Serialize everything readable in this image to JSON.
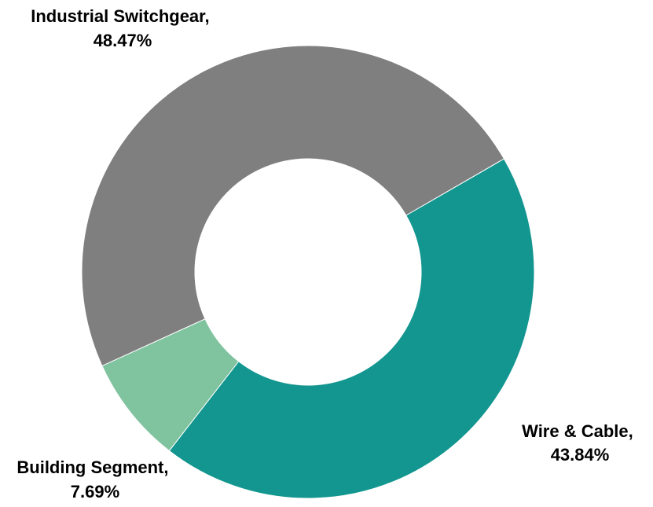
{
  "chart_data": {
    "type": "pie",
    "variant": "donut",
    "legend": "none",
    "slices": [
      {
        "label": "Wire & Cable,",
        "value": 43.84,
        "value_label": "43.84%",
        "color": "#12968f"
      },
      {
        "label": "Building Segment,",
        "value": 7.69,
        "value_label": "7.69%",
        "color": "#80c39f"
      },
      {
        "label": "Industrial Switchgear,",
        "value": 48.47,
        "value_label": "48.47%",
        "color": "#7f7f7f"
      }
    ]
  }
}
